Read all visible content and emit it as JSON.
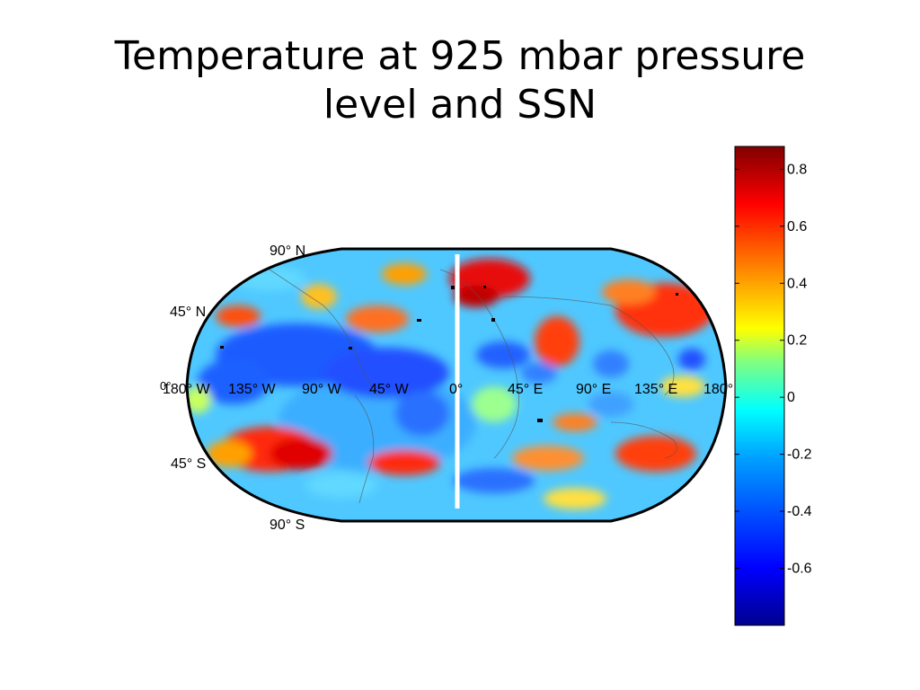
{
  "title": {
    "line1": "Temperature at 925 mbar pressure",
    "line2": "level and SSN"
  },
  "map": {
    "projection": "Robinson",
    "content": "global gridded field with coastline overlay",
    "latitude_labels": [
      "90° N",
      "45° N",
      "0°",
      "45° S",
      "90° S"
    ],
    "longitude_labels": [
      "180° W",
      "135° W",
      "90° W",
      "45° W",
      "0°",
      "45° E",
      "90° E",
      "135° E",
      "180°"
    ]
  },
  "colorbar": {
    "range": [
      -0.8,
      0.88
    ],
    "ticks": [
      "0.8",
      "0.6",
      "0.4",
      "0.2",
      "0",
      "-0.2",
      "-0.4",
      "-0.6"
    ],
    "colormap": [
      "#00008f",
      "#0000ff",
      "#00a0ff",
      "#00ffff",
      "#80ff80",
      "#ffff00",
      "#ff8000",
      "#ff0000",
      "#800000"
    ]
  },
  "chart_data": {
    "type": "heatmap",
    "title": "Temperature at 925 mbar pressure level and SSN",
    "colorbar_min": -0.8,
    "colorbar_max": 0.88,
    "colorbar_ticks": [
      0.8,
      0.6,
      0.4,
      0.2,
      0,
      -0.2,
      -0.4,
      -0.6
    ],
    "x_axis": [
      "180° W",
      "135° W",
      "90° W",
      "45° W",
      "0°",
      "45° E",
      "90° E",
      "135° E",
      "180°"
    ],
    "y_axis": [
      "90° N",
      "45° N",
      "0°",
      "45° S",
      "90° S"
    ]
  }
}
